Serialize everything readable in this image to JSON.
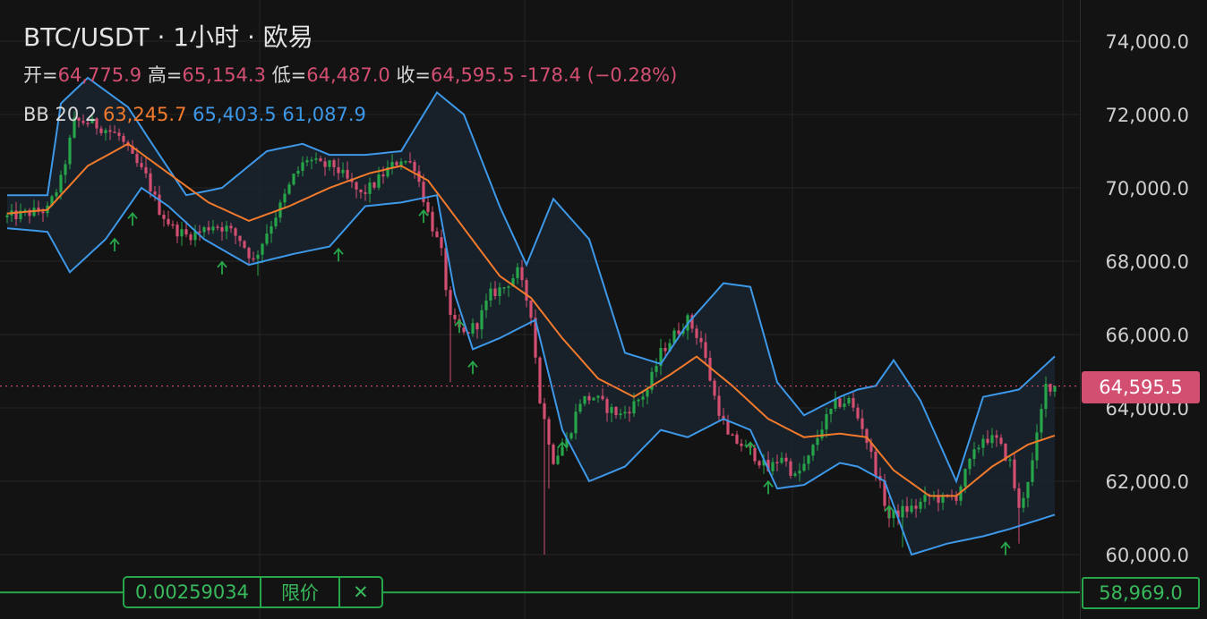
{
  "header": {
    "title": "BTC/USDT · 1小时 · 欧易",
    "open_label": "开=",
    "open": "64,775.9",
    "high_label": "高=",
    "high": "65,154.3",
    "low_label": "低=",
    "low": "64,487.0",
    "close_label": "收=",
    "close": "64,595.5",
    "change": "-178.4 (−0.28%)"
  },
  "indicator": {
    "label": "BB 20 2",
    "middle": "63,245.7",
    "upper": "65,403.5",
    "lower": "61,087.9"
  },
  "last_price_tag": "64,595.5",
  "order": {
    "quantity": "0.00259034",
    "type": "限价",
    "close_glyph": "✕",
    "price_tag": "58,969.0"
  },
  "colors": {
    "up": "#27a54a",
    "down": "#d24f72",
    "middle_band": "#f27a2c",
    "outer_band": "#3d98e8",
    "background": "#131313"
  },
  "chart_data": {
    "type": "candlestick",
    "title": "BTC/USDT · 1小时 · 欧易",
    "ylim": [
      59300,
      75000
    ],
    "y_ticks": [
      60000,
      62000,
      64000,
      66000,
      68000,
      70000,
      72000,
      74000
    ],
    "y_tick_labels": [
      "60,000.0",
      "62,000.0",
      "64,000.0",
      "66,000.0",
      "68,000.0",
      "70,000.0",
      "72,000.0",
      "74,000.0"
    ],
    "last_price": 64595.5,
    "order_price": 58969.0,
    "close_path": [
      [
        0,
        69200
      ],
      [
        4,
        69300
      ],
      [
        9,
        69400
      ],
      [
        12,
        70200
      ],
      [
        15,
        71800
      ],
      [
        18,
        71800
      ],
      [
        22,
        71600
      ],
      [
        25,
        71400
      ],
      [
        28,
        70800
      ],
      [
        31,
        70300
      ],
      [
        34,
        69400
      ],
      [
        37,
        68900
      ],
      [
        40,
        68700
      ],
      [
        43,
        68800
      ],
      [
        46,
        69000
      ],
      [
        49,
        68900
      ],
      [
        52,
        68600
      ],
      [
        55,
        68000
      ],
      [
        58,
        68800
      ],
      [
        61,
        69500
      ],
      [
        64,
        70300
      ],
      [
        67,
        70800
      ],
      [
        70,
        70600
      ],
      [
        73,
        70600
      ],
      [
        76,
        70200
      ],
      [
        79,
        69800
      ],
      [
        82,
        70100
      ],
      [
        85,
        70500
      ],
      [
        88,
        70800
      ],
      [
        91,
        70600
      ],
      [
        94,
        69300
      ],
      [
        97,
        68200
      ],
      [
        99,
        66400
      ],
      [
        102,
        66000
      ],
      [
        105,
        66300
      ],
      [
        108,
        67100
      ],
      [
        111,
        67300
      ],
      [
        114,
        67700
      ],
      [
        117,
        66600
      ],
      [
        119,
        64200
      ],
      [
        122,
        62600
      ],
      [
        125,
        63100
      ],
      [
        128,
        64200
      ],
      [
        131,
        64300
      ],
      [
        134,
        64000
      ],
      [
        137,
        63800
      ],
      [
        140,
        64100
      ],
      [
        143,
        64500
      ],
      [
        146,
        65500
      ],
      [
        149,
        66000
      ],
      [
        152,
        66400
      ],
      [
        155,
        65800
      ],
      [
        158,
        64300
      ],
      [
        161,
        63200
      ],
      [
        164,
        63000
      ],
      [
        167,
        62700
      ],
      [
        170,
        62300
      ],
      [
        173,
        62700
      ],
      [
        176,
        62100
      ],
      [
        179,
        62600
      ],
      [
        182,
        63500
      ],
      [
        185,
        64100
      ],
      [
        188,
        64200
      ],
      [
        191,
        63500
      ],
      [
        194,
        62300
      ],
      [
        197,
        61000
      ],
      [
        200,
        61200
      ],
      [
        203,
        61300
      ],
      [
        206,
        61600
      ],
      [
        209,
        61500
      ],
      [
        212,
        61600
      ],
      [
        215,
        62500
      ],
      [
        218,
        63200
      ],
      [
        221,
        63100
      ],
      [
        224,
        62500
      ],
      [
        226,
        61200
      ],
      [
        229,
        62500
      ],
      [
        232,
        64600
      ],
      [
        234,
        64600
      ]
    ],
    "ma_middle": [
      [
        0,
        69300
      ],
      [
        9,
        69400
      ],
      [
        18,
        70600
      ],
      [
        27,
        71200
      ],
      [
        36,
        70400
      ],
      [
        45,
        69600
      ],
      [
        54,
        69100
      ],
      [
        63,
        69500
      ],
      [
        72,
        70000
      ],
      [
        81,
        70400
      ],
      [
        88,
        70600
      ],
      [
        94,
        70200
      ],
      [
        102,
        68900
      ],
      [
        110,
        67600
      ],
      [
        117,
        67000
      ],
      [
        124,
        65900
      ],
      [
        132,
        64800
      ],
      [
        140,
        64300
      ],
      [
        148,
        64900
      ],
      [
        154,
        65400
      ],
      [
        162,
        64600
      ],
      [
        170,
        63700
      ],
      [
        178,
        63200
      ],
      [
        186,
        63300
      ],
      [
        192,
        63200
      ],
      [
        198,
        62300
      ],
      [
        206,
        61600
      ],
      [
        212,
        61600
      ],
      [
        220,
        62400
      ],
      [
        228,
        63000
      ],
      [
        234,
        63246
      ]
    ],
    "bb_upper": [
      [
        0,
        69800
      ],
      [
        9,
        69800
      ],
      [
        12,
        72300
      ],
      [
        18,
        73000
      ],
      [
        27,
        72200
      ],
      [
        34,
        70900
      ],
      [
        40,
        69800
      ],
      [
        48,
        70000
      ],
      [
        58,
        71000
      ],
      [
        66,
        71200
      ],
      [
        72,
        70900
      ],
      [
        80,
        70900
      ],
      [
        88,
        71000
      ],
      [
        96,
        72600
      ],
      [
        102,
        72000
      ],
      [
        110,
        69500
      ],
      [
        116,
        67900
      ],
      [
        122,
        69700
      ],
      [
        130,
        68600
      ],
      [
        138,
        65500
      ],
      [
        146,
        65200
      ],
      [
        152,
        66300
      ],
      [
        160,
        67400
      ],
      [
        166,
        67300
      ],
      [
        172,
        64700
      ],
      [
        178,
        63800
      ],
      [
        186,
        64300
      ],
      [
        190,
        64500
      ],
      [
        194,
        64600
      ],
      [
        198,
        65300
      ],
      [
        204,
        64200
      ],
      [
        212,
        62000
      ],
      [
        218,
        64300
      ],
      [
        226,
        64500
      ],
      [
        234,
        65404
      ]
    ],
    "bb_lower": [
      [
        0,
        68900
      ],
      [
        9,
        68800
      ],
      [
        14,
        67700
      ],
      [
        22,
        68600
      ],
      [
        30,
        70000
      ],
      [
        36,
        69500
      ],
      [
        44,
        68600
      ],
      [
        54,
        67900
      ],
      [
        64,
        68200
      ],
      [
        72,
        68400
      ],
      [
        80,
        69500
      ],
      [
        88,
        69600
      ],
      [
        96,
        69800
      ],
      [
        100,
        67100
      ],
      [
        104,
        65600
      ],
      [
        110,
        65900
      ],
      [
        118,
        66400
      ],
      [
        124,
        63400
      ],
      [
        130,
        62000
      ],
      [
        138,
        62400
      ],
      [
        146,
        63400
      ],
      [
        152,
        63200
      ],
      [
        160,
        63700
      ],
      [
        166,
        63400
      ],
      [
        172,
        61800
      ],
      [
        178,
        61900
      ],
      [
        186,
        62500
      ],
      [
        190,
        62400
      ],
      [
        196,
        62000
      ],
      [
        202,
        60000
      ],
      [
        210,
        60300
      ],
      [
        218,
        60500
      ],
      [
        224,
        60700
      ],
      [
        234,
        61088
      ]
    ]
  }
}
